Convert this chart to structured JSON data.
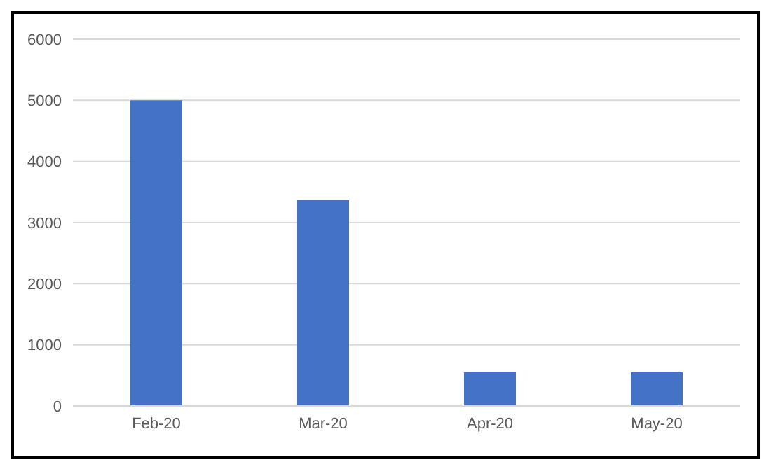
{
  "chart_data": {
    "type": "bar",
    "categories": [
      "Feb-20",
      "Mar-20",
      "Apr-20",
      "May-20"
    ],
    "values": [
      5000,
      3370,
      550,
      550
    ],
    "color": "#4472c4",
    "ylim": [
      0,
      6000
    ],
    "yticks": [
      0,
      1000,
      2000,
      3000,
      4000,
      5000,
      6000
    ],
    "grid": "y"
  }
}
